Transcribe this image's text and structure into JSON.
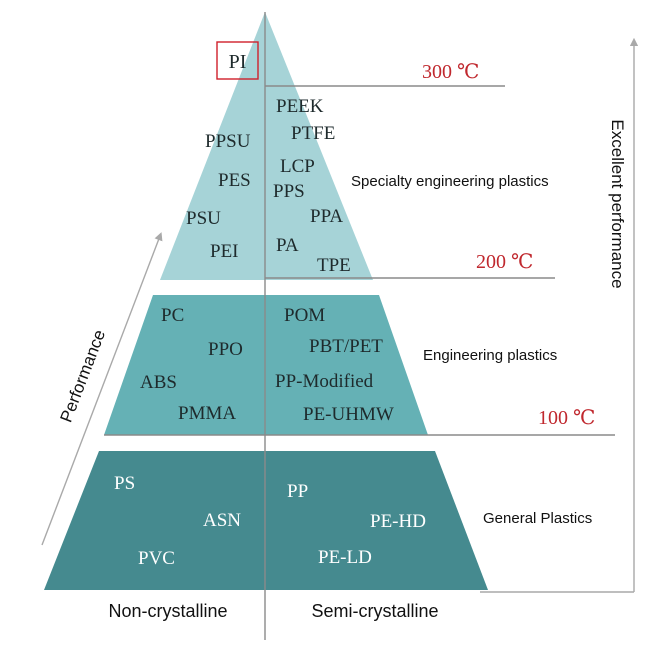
{
  "colors": {
    "top_tier": "#a6d3d7",
    "middle_tier": "#65b1b5",
    "bottom_tier": "#458a8f",
    "divider": "#8a8a8a",
    "temperature": "#c0282e",
    "highlight_box": "#d0202a",
    "arrow": "#a9a9a9",
    "dark_text": "#1e2a2c",
    "light_text": "#ffffff"
  },
  "columns": {
    "left": "Non-crystalline",
    "right": "Semi-crystalline"
  },
  "arrows": {
    "left_label": "Performance",
    "right_label": "Excellent performance"
  },
  "tiers": {
    "specialty": {
      "label": "Specialty engineering plastics",
      "temperature_top": "300 ℃",
      "temperature_bottom": "200 ℃",
      "highlight": "PI",
      "left_items": [
        "PPSU",
        "PES",
        "PSU",
        "PEI"
      ],
      "right_items": [
        "PEEK",
        "PTFE",
        "LCP",
        "PPS",
        "PPA",
        "PA",
        "TPE"
      ]
    },
    "engineering": {
      "label": "Engineering plastics",
      "temperature": "100 ℃",
      "left_items": [
        "PC",
        "PPO",
        "ABS",
        "PMMA"
      ],
      "right_items": [
        "POM",
        "PBT/PET",
        "PP-Modified",
        "PE-UHMW"
      ]
    },
    "general": {
      "label": "General Plastics",
      "left_items": [
        "PS",
        "ASN",
        "PVC"
      ],
      "right_items": [
        "PP",
        "PE-HD",
        "PE-LD"
      ]
    }
  }
}
